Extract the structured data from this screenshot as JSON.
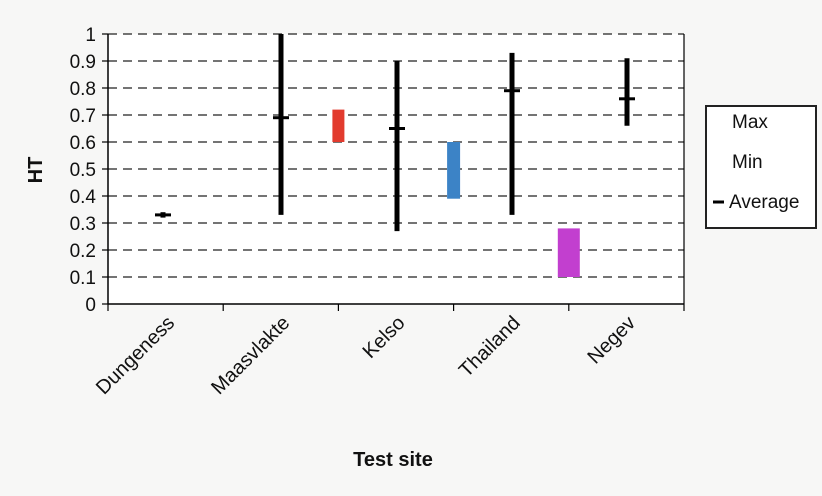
{
  "chart_data": {
    "type": "range",
    "xlabel": "Test site",
    "ylabel": "HT",
    "ylim": [
      0,
      1
    ],
    "yticks": [
      "0",
      "0.1",
      "0.2",
      "0.3",
      "0.4",
      "0.5",
      "0.6",
      "0.7",
      "0.8",
      "0.9",
      "1"
    ],
    "grid": true,
    "legend_position": "right",
    "categories": [
      "Dungeness",
      "Maasvlakte",
      "Kelso",
      "Thailand",
      "Negev"
    ],
    "series": [
      {
        "name": "Max",
        "values": [
          0.34,
          1.0,
          0.9,
          0.93,
          0.91
        ]
      },
      {
        "name": "Min",
        "values": [
          0.32,
          0.33,
          0.27,
          0.33,
          0.66
        ]
      },
      {
        "name": "Average",
        "values": [
          0.33,
          0.69,
          0.65,
          0.79,
          0.76
        ]
      }
    ],
    "colored_bars": [
      {
        "color": "#e23b2e",
        "low": 0.6,
        "high": 0.72
      },
      {
        "color": "#3c83c6",
        "low": 0.39,
        "high": 0.6
      },
      {
        "color": "#c23fcf",
        "low": 0.1,
        "high": 0.28
      }
    ]
  }
}
